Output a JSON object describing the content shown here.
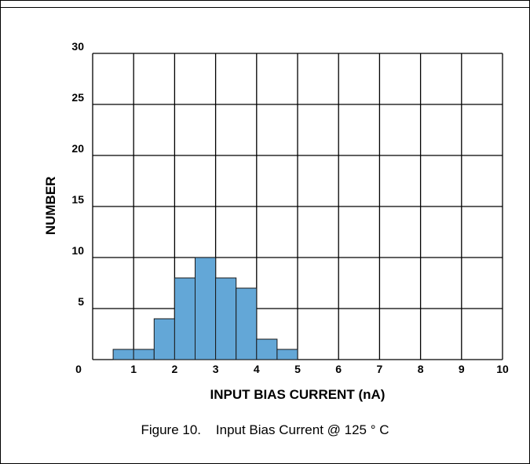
{
  "caption": "Figure 10.    Input Bias Current @ 125 ° C",
  "colors": {
    "bar_fill": "#63a7d7",
    "bar_stroke": "#1a1a1a",
    "grid": "#000000"
  },
  "chart_data": {
    "type": "bar",
    "title": "",
    "xlabel": "INPUT BIAS CURRENT (nA)",
    "ylabel": "NUMBER",
    "xlim": [
      0,
      10
    ],
    "ylim": [
      0,
      30
    ],
    "xticks": [
      0,
      1,
      2,
      3,
      4,
      5,
      6,
      7,
      8,
      9,
      10
    ],
    "yticks": [
      0,
      5,
      10,
      15,
      20,
      25,
      30
    ],
    "grid": true,
    "bin_width": 0.5,
    "bins": [
      {
        "x0": 0.5,
        "x1": 1.0,
        "value": 1
      },
      {
        "x0": 1.0,
        "x1": 1.5,
        "value": 1
      },
      {
        "x0": 1.5,
        "x1": 2.0,
        "value": 4
      },
      {
        "x0": 2.0,
        "x1": 2.5,
        "value": 8
      },
      {
        "x0": 2.5,
        "x1": 3.0,
        "value": 10
      },
      {
        "x0": 3.0,
        "x1": 3.5,
        "value": 8
      },
      {
        "x0": 3.5,
        "x1": 4.0,
        "value": 7
      },
      {
        "x0": 4.0,
        "x1": 4.5,
        "value": 2
      },
      {
        "x0": 4.5,
        "x1": 5.0,
        "value": 1
      }
    ]
  }
}
